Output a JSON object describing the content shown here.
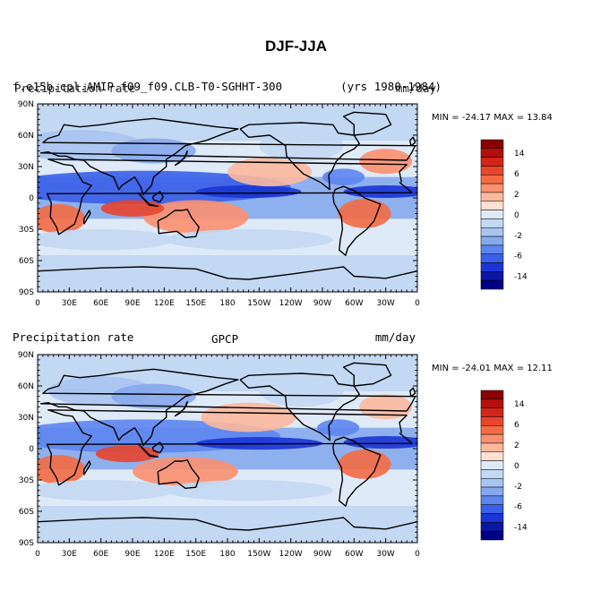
{
  "title": "DJF-JJA",
  "panels": [
    {
      "header_left": "f.e15b.cpl.AMIP.f09_f09.CLB-T0-SGHHT-300",
      "header_left_overlay": "Precipitation rate",
      "header_right": "(yrs 1980-1984)",
      "header_right_overlay": "mm/day",
      "header_center": "",
      "stats": "MIN = -24.17  MAX =  13.84"
    },
    {
      "header_left": "Precipitation rate",
      "header_center": "GPCP",
      "header_right": "mm/day",
      "stats": "MIN = -24.01  MAX =  12.11"
    }
  ],
  "lat_labels": [
    "90N",
    "60N",
    "30N",
    "0",
    "30S",
    "60S",
    "90S"
  ],
  "lon_labels": [
    "0",
    "30E",
    "60E",
    "90E",
    "120E",
    "150E",
    "180",
    "150W",
    "120W",
    "90W",
    "60W",
    "30W",
    "0"
  ],
  "colorbar": {
    "labels": [
      "14",
      "6",
      "2",
      "0",
      "-2",
      "-6",
      "-14"
    ],
    "colors": [
      "#8b0000",
      "#b40f0a",
      "#d3261a",
      "#e8452d",
      "#f46b43",
      "#fb9070",
      "#fcb99e",
      "#fde0cf",
      "#dfeaf8",
      "#c3d8f3",
      "#a8c4ef",
      "#86a8ed",
      "#5d85ee",
      "#3a5fe8",
      "#1a35d5",
      "#0a16a6",
      "#000084"
    ]
  },
  "colors": {
    "positive": "#f08a66",
    "negative": "#8fb0ee",
    "neutral": "#fdf0e8"
  },
  "map_layout": {}
}
